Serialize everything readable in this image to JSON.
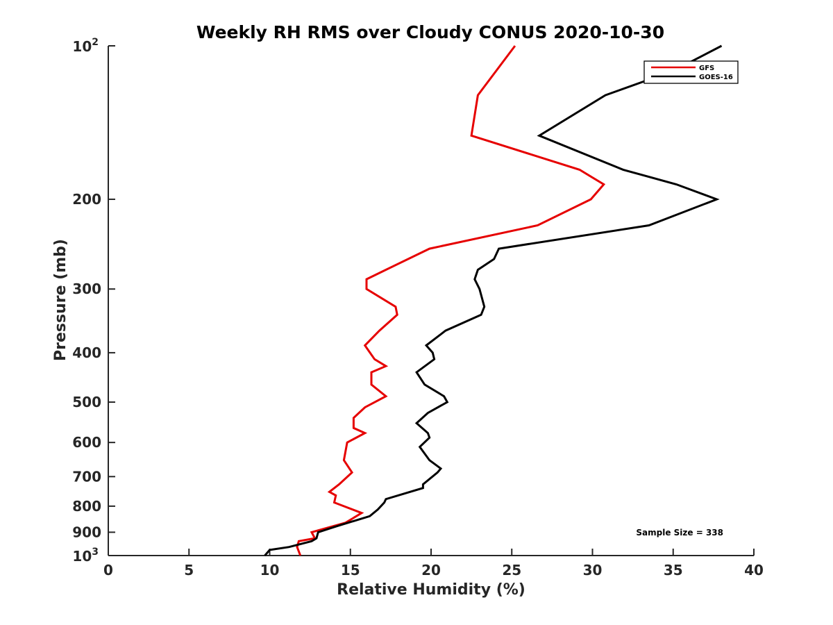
{
  "chart_data": {
    "type": "line",
    "title": "Weekly RH RMS over Cloudy CONUS 2020-10-30",
    "xlabel": "Relative Humidity (%)",
    "ylabel": "Pressure (mb)",
    "xlim": [
      0,
      40
    ],
    "ylim": [
      100,
      1000
    ],
    "y_scale": "log",
    "y_reversed": true,
    "grid": false,
    "legend_position": "top-right",
    "x_ticks": [
      "0",
      "5",
      "10",
      "15",
      "20",
      "25",
      "30",
      "35",
      "40"
    ],
    "y_ticks": [
      {
        "value": 100,
        "base": "10",
        "exp": "2"
      },
      {
        "value": 200,
        "label": "200"
      },
      {
        "value": 300,
        "label": "300"
      },
      {
        "value": 400,
        "label": "400"
      },
      {
        "value": 500,
        "label": "500"
      },
      {
        "value": 600,
        "label": "600"
      },
      {
        "value": 700,
        "label": "700"
      },
      {
        "value": 800,
        "label": "800"
      },
      {
        "value": 900,
        "label": "900"
      },
      {
        "value": 1000,
        "base": "10",
        "exp": "3"
      }
    ],
    "series": [
      {
        "name": "GFS",
        "color": "#e60000",
        "points": [
          [
            25.2,
            100
          ],
          [
            22.9,
            125
          ],
          [
            22.5,
            150
          ],
          [
            29.2,
            175
          ],
          [
            30.7,
            187
          ],
          [
            29.9,
            200
          ],
          [
            26.6,
            225
          ],
          [
            19.9,
            250
          ],
          [
            17.2,
            275
          ],
          [
            16.0,
            287
          ],
          [
            16.0,
            300
          ],
          [
            17.8,
            325
          ],
          [
            17.9,
            337
          ],
          [
            16.8,
            362
          ],
          [
            15.9,
            387
          ],
          [
            16.5,
            412
          ],
          [
            17.2,
            425
          ],
          [
            16.3,
            437
          ],
          [
            16.3,
            462
          ],
          [
            17.2,
            487
          ],
          [
            15.9,
            512
          ],
          [
            15.2,
            537
          ],
          [
            15.2,
            562
          ],
          [
            15.9,
            575
          ],
          [
            14.8,
            600
          ],
          [
            14.6,
            650
          ],
          [
            15.1,
            687
          ],
          [
            14.3,
            725
          ],
          [
            13.7,
            750
          ],
          [
            14.1,
            762
          ],
          [
            14.0,
            787
          ],
          [
            15.7,
            825
          ],
          [
            14.7,
            862
          ],
          [
            12.6,
            900
          ],
          [
            12.8,
            925
          ],
          [
            11.8,
            937
          ],
          [
            11.7,
            962
          ],
          [
            11.9,
            1000
          ]
        ]
      },
      {
        "name": "GOES-16",
        "color": "#000000",
        "points": [
          [
            38.0,
            100
          ],
          [
            35.0,
            112
          ],
          [
            30.8,
            125
          ],
          [
            26.7,
            150
          ],
          [
            31.9,
            175
          ],
          [
            35.2,
            187
          ],
          [
            37.7,
            200
          ],
          [
            33.5,
            225
          ],
          [
            24.2,
            250
          ],
          [
            23.9,
            262
          ],
          [
            22.9,
            275
          ],
          [
            22.7,
            287
          ],
          [
            23.0,
            300
          ],
          [
            23.3,
            325
          ],
          [
            23.1,
            337
          ],
          [
            20.9,
            362
          ],
          [
            19.7,
            387
          ],
          [
            20.1,
            400
          ],
          [
            20.2,
            412
          ],
          [
            19.1,
            437
          ],
          [
            19.6,
            462
          ],
          [
            20.8,
            487
          ],
          [
            21.0,
            500
          ],
          [
            19.8,
            525
          ],
          [
            19.1,
            550
          ],
          [
            19.8,
            575
          ],
          [
            19.9,
            587
          ],
          [
            19.3,
            612
          ],
          [
            19.9,
            650
          ],
          [
            20.6,
            675
          ],
          [
            20.4,
            687
          ],
          [
            19.5,
            725
          ],
          [
            19.5,
            737
          ],
          [
            17.2,
            775
          ],
          [
            17.1,
            787
          ],
          [
            16.7,
            812
          ],
          [
            16.2,
            837
          ],
          [
            14.2,
            875
          ],
          [
            13.0,
            900
          ],
          [
            12.9,
            925
          ],
          [
            12.6,
            937
          ],
          [
            11.2,
            962
          ],
          [
            10.0,
            975
          ],
          [
            9.7,
            1000
          ]
        ]
      }
    ],
    "annotation": "Sample Size = 338"
  }
}
